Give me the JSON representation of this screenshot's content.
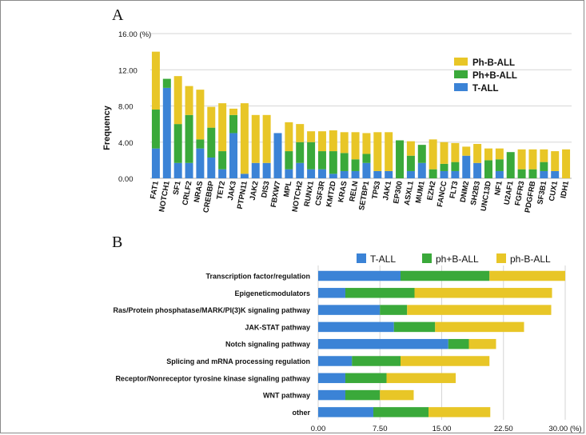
{
  "colors": {
    "t_all": "#3b83d6",
    "ph_pos": "#3aa93a",
    "ph_neg": "#e8c627"
  },
  "chart_data": [
    {
      "panel": "A",
      "type": "bar",
      "stacked": true,
      "ylabel": "Frequency",
      "ylim": [
        0,
        16
      ],
      "yticks": [
        "0.00",
        "4.00",
        "8.00",
        "12.00",
        "16.00 (%)"
      ],
      "legend_position": "top-right",
      "legend": [
        "Ph-B-ALL",
        "Ph+B-ALL",
        "T-ALL"
      ],
      "categories": [
        "FAT1",
        "NOTCH1",
        "SF1",
        "CRLF2",
        "NRAS",
        "CREBBP",
        "TET2",
        "JAK3",
        "PTPN11",
        "JAK2",
        "DIS3",
        "FBXW7",
        "MPL",
        "NOTCH2",
        "RUNX1",
        "CSF3R",
        "KMT2D",
        "KRAS",
        "RELN",
        "SETBP1",
        "TP53",
        "JAK1",
        "EP300",
        "ASXL1",
        "MUM1",
        "EZH2",
        "FANCC",
        "FLT3",
        "DNM2",
        "SH2B3",
        "UNC13D",
        "NF1",
        "U2AF1",
        "FGFR3",
        "PDGFRB",
        "SF3B1",
        "CUX1",
        "IDH1"
      ],
      "series": [
        {
          "name": "T-ALL",
          "values": [
            3.3,
            10.0,
            1.7,
            1.7,
            3.3,
            2.3,
            1.0,
            5.0,
            0.5,
            1.7,
            1.7,
            5.0,
            1.0,
            1.7,
            1.0,
            1.0,
            0.5,
            0.8,
            0.8,
            1.7,
            0.8,
            0.8,
            0,
            0.8,
            1.7,
            0,
            0.8,
            0.8,
            2.5,
            1.7,
            0,
            0.8,
            0,
            0,
            0,
            0.8,
            0.8,
            0
          ]
        },
        {
          "name": "Ph+B-ALL",
          "values": [
            4.3,
            1.0,
            4.3,
            5.3,
            1.0,
            3.3,
            2.0,
            2.0,
            0,
            0,
            0,
            0,
            2.0,
            2.3,
            3.0,
            2.0,
            2.5,
            2.0,
            1.3,
            1.0,
            0,
            0,
            4.2,
            1.7,
            2.0,
            1.0,
            0.8,
            1.0,
            0,
            0,
            2.0,
            1.3,
            2.9,
            1.0,
            1.0,
            1.0,
            0,
            0
          ]
        },
        {
          "name": "Ph-B-ALL",
          "values": [
            6.4,
            0,
            5.3,
            3.2,
            5.5,
            2.3,
            5.3,
            0.7,
            7.8,
            5.3,
            5.3,
            0,
            3.2,
            2.0,
            1.2,
            2.2,
            2.3,
            2.3,
            3.0,
            2.3,
            4.3,
            4.3,
            0,
            1.6,
            0,
            3.3,
            2.4,
            2.1,
            1.0,
            2.1,
            1.3,
            1.2,
            0,
            2.2,
            2.2,
            1.4,
            2.2,
            3.2
          ]
        }
      ]
    },
    {
      "panel": "B",
      "type": "bar",
      "orientation": "horizontal",
      "stacked": true,
      "xlim": [
        0,
        30
      ],
      "xticks": [
        "0.00",
        "7.50",
        "15.00",
        "22.50",
        "30.00 (%)"
      ],
      "legend_position": "top",
      "legend": [
        "T-ALL",
        "ph+B-ALL",
        "ph-B-ALL"
      ],
      "categories": [
        "Transcription factor/regulation",
        "Epigeneticmodulators",
        "Ras/Protein phosphatase/MARK/PI(3)K signaling pathway",
        "JAK-STAT pathway",
        "Notch signaling pathway",
        "Splicing and mRNA processing regulation",
        "Receptor/Nonreceptor tyrosine kinase signaling pathway",
        "WNT pathway",
        "other"
      ],
      "series": [
        {
          "name": "T-ALL",
          "values": [
            10.0,
            3.3,
            7.5,
            9.2,
            15.8,
            4.1,
            3.3,
            3.3,
            6.7
          ]
        },
        {
          "name": "ph+B-ALL",
          "values": [
            10.8,
            8.4,
            3.3,
            5.0,
            2.5,
            5.9,
            5.0,
            4.2,
            6.7
          ]
        },
        {
          "name": "ph-B-ALL",
          "values": [
            9.2,
            16.7,
            17.5,
            10.8,
            3.3,
            10.8,
            8.4,
            4.1,
            7.5
          ]
        }
      ]
    }
  ]
}
